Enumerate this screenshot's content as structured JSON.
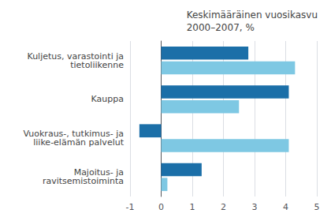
{
  "chart_data": {
    "type": "bar",
    "orientation": "horizontal",
    "title": "Keskimääräinen vuosikasvu\n2000–2007, %",
    "categories": [
      "Kuljetus, varastointi ja\n    tietoliikenne",
      "Kauppa",
      "Vuokraus-, tutkimus- ja\n liike-elämän palvelut",
      "Majoitus- ja\nravitsemistoiminta"
    ],
    "series": [
      {
        "color": "#1b6fa8",
        "values": [
          2.8,
          4.1,
          -0.7,
          1.3
        ]
      },
      {
        "color": "#7ec8e3",
        "values": [
          4.3,
          2.5,
          4.1,
          0.2
        ]
      }
    ],
    "xlim": [
      -1,
      5
    ],
    "xticks": [
      -1,
      0,
      1,
      2,
      3,
      4,
      5
    ],
    "grid": true
  }
}
